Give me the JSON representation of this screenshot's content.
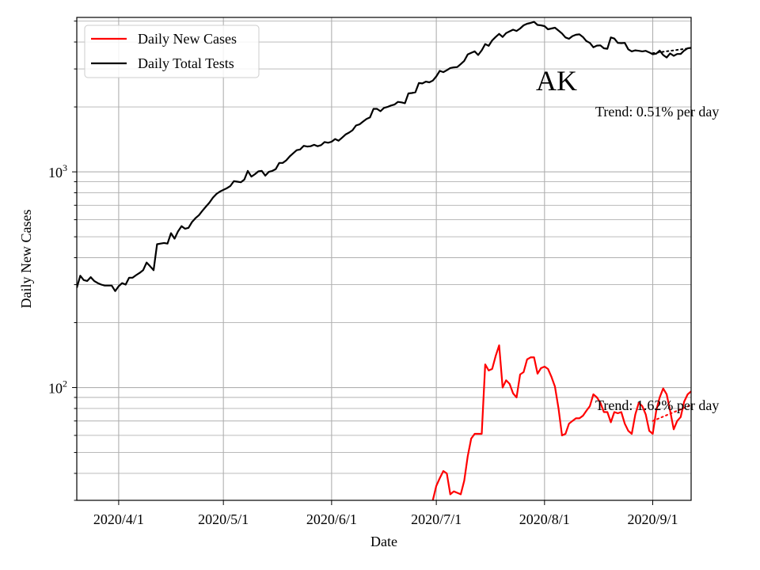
{
  "chart_data": {
    "type": "line",
    "title": "",
    "annotation": "AK",
    "xlabel": "Date",
    "ylabel": "Daily New Cases",
    "x_ticks": [
      "2020/4/1",
      "2020/5/1",
      "2020/6/1",
      "2020/7/1",
      "2020/8/1",
      "2020/9/1"
    ],
    "x_range": [
      "2020-03-20",
      "2020-09-12"
    ],
    "y_scale": "log",
    "ylim": [
      30,
      5200
    ],
    "y_major_ticks": [
      {
        "value": 100,
        "base": "10",
        "exp": "2"
      },
      {
        "value": 1000,
        "base": "10",
        "exp": "3"
      }
    ],
    "grid": true,
    "legend_position": "top-left",
    "series": [
      {
        "name": "Daily New Cases",
        "color": "#ff0000",
        "trend_text": "Trend: 1.62% per day",
        "trend_line": [
          [
            "2020-09-01",
            70
          ],
          [
            "2020-09-12",
            83
          ]
        ],
        "points": [
          [
            "2020-06-30",
            30
          ],
          [
            "2020-07-01",
            35
          ],
          [
            "2020-07-02",
            38
          ],
          [
            "2020-07-03",
            41
          ],
          [
            "2020-07-04",
            40
          ],
          [
            "2020-07-05",
            32
          ],
          [
            "2020-07-06",
            33
          ],
          [
            "2020-07-07",
            32.5
          ],
          [
            "2020-07-08",
            32
          ],
          [
            "2020-07-09",
            37
          ],
          [
            "2020-07-10",
            48
          ],
          [
            "2020-07-11",
            58
          ],
          [
            "2020-07-12",
            61
          ],
          [
            "2020-07-13",
            61
          ],
          [
            "2020-07-14",
            61
          ],
          [
            "2020-07-15",
            128
          ],
          [
            "2020-07-16",
            120
          ],
          [
            "2020-07-17",
            122
          ],
          [
            "2020-07-18",
            140
          ],
          [
            "2020-07-19",
            157
          ],
          [
            "2020-07-20",
            100
          ],
          [
            "2020-07-21",
            108
          ],
          [
            "2020-07-22",
            104
          ],
          [
            "2020-07-23",
            94
          ],
          [
            "2020-07-24",
            90
          ],
          [
            "2020-07-25",
            115
          ],
          [
            "2020-07-26",
            118
          ],
          [
            "2020-07-27",
            135
          ],
          [
            "2020-07-28",
            138
          ],
          [
            "2020-07-29",
            138
          ],
          [
            "2020-07-30",
            116
          ],
          [
            "2020-07-31",
            123
          ],
          [
            "2020-08-01",
            125
          ],
          [
            "2020-08-02",
            122
          ],
          [
            "2020-08-03",
            112
          ],
          [
            "2020-08-04",
            101
          ],
          [
            "2020-08-05",
            80
          ],
          [
            "2020-08-06",
            60
          ],
          [
            "2020-08-07",
            61
          ],
          [
            "2020-08-08",
            68
          ],
          [
            "2020-08-09",
            70
          ],
          [
            "2020-08-10",
            72
          ],
          [
            "2020-08-11",
            72
          ],
          [
            "2020-08-12",
            74
          ],
          [
            "2020-08-13",
            78
          ],
          [
            "2020-08-14",
            82
          ],
          [
            "2020-08-15",
            93
          ],
          [
            "2020-08-16",
            90
          ],
          [
            "2020-08-17",
            85
          ],
          [
            "2020-08-18",
            77
          ],
          [
            "2020-08-19",
            77
          ],
          [
            "2020-08-20",
            69
          ],
          [
            "2020-08-21",
            77
          ],
          [
            "2020-08-22",
            76
          ],
          [
            "2020-08-23",
            77
          ],
          [
            "2020-08-24",
            68
          ],
          [
            "2020-08-25",
            63
          ],
          [
            "2020-08-26",
            61
          ],
          [
            "2020-08-27",
            75
          ],
          [
            "2020-08-28",
            85
          ],
          [
            "2020-08-29",
            82
          ],
          [
            "2020-08-30",
            75
          ],
          [
            "2020-08-31",
            63
          ],
          [
            "2020-09-01",
            61
          ],
          [
            "2020-09-02",
            78
          ],
          [
            "2020-09-03",
            90
          ],
          [
            "2020-09-04",
            99
          ],
          [
            "2020-09-05",
            93
          ],
          [
            "2020-09-06",
            78
          ],
          [
            "2020-09-07",
            64
          ],
          [
            "2020-09-08",
            70
          ],
          [
            "2020-09-09",
            73
          ],
          [
            "2020-09-10",
            86
          ],
          [
            "2020-09-11",
            93
          ],
          [
            "2020-09-12",
            96
          ],
          [
            "2020-09-13",
            90
          ],
          [
            "2020-09-14",
            82
          ]
        ]
      },
      {
        "name": "Daily Total Tests",
        "color": "#000000",
        "trend_text": "Trend: 0.51% per day",
        "trend_line": [
          [
            "2020-09-01",
            3550
          ],
          [
            "2020-09-12",
            3750
          ]
        ],
        "points": [
          [
            "2020-03-20",
            290
          ],
          [
            "2020-03-21",
            330
          ],
          [
            "2020-03-22",
            315
          ],
          [
            "2020-03-23",
            312
          ],
          [
            "2020-03-24",
            325
          ],
          [
            "2020-03-25",
            312
          ],
          [
            "2020-03-26",
            305
          ],
          [
            "2020-03-27",
            300
          ],
          [
            "2020-03-28",
            297
          ],
          [
            "2020-03-29",
            297
          ],
          [
            "2020-03-30",
            297
          ],
          [
            "2020-03-31",
            280
          ],
          [
            "2020-04-01",
            295
          ],
          [
            "2020-04-02",
            305
          ],
          [
            "2020-04-03",
            300
          ],
          [
            "2020-04-04",
            323
          ],
          [
            "2020-04-05",
            323
          ],
          [
            "2020-04-06",
            332
          ],
          [
            "2020-04-07",
            340
          ],
          [
            "2020-04-08",
            350
          ],
          [
            "2020-04-09",
            380
          ],
          [
            "2020-04-10",
            365
          ],
          [
            "2020-04-11",
            350
          ],
          [
            "2020-04-12",
            462
          ],
          [
            "2020-04-13",
            465
          ],
          [
            "2020-04-14",
            468
          ],
          [
            "2020-04-15",
            465
          ],
          [
            "2020-04-16",
            520
          ],
          [
            "2020-04-17",
            490
          ],
          [
            "2020-04-18",
            530
          ],
          [
            "2020-04-19",
            560
          ],
          [
            "2020-04-20",
            545
          ],
          [
            "2020-04-21",
            550
          ],
          [
            "2020-04-22",
            585
          ],
          [
            "2020-04-23",
            610
          ],
          [
            "2020-04-24",
            630
          ],
          [
            "2020-04-25",
            660
          ],
          [
            "2020-04-26",
            690
          ],
          [
            "2020-04-27",
            720
          ],
          [
            "2020-04-28",
            760
          ],
          [
            "2020-04-29",
            790
          ],
          [
            "2020-04-30",
            810
          ],
          [
            "2020-05-01",
            825
          ],
          [
            "2020-05-02",
            840
          ],
          [
            "2020-05-03",
            860
          ],
          [
            "2020-05-04",
            905
          ],
          [
            "2020-05-05",
            900
          ],
          [
            "2020-05-06",
            895
          ],
          [
            "2020-05-07",
            920
          ],
          [
            "2020-05-08",
            1010
          ],
          [
            "2020-05-09",
            950
          ],
          [
            "2020-05-10",
            975
          ],
          [
            "2020-05-11",
            1005
          ],
          [
            "2020-05-12",
            1010
          ],
          [
            "2020-05-13",
            960
          ],
          [
            "2020-05-14",
            1000
          ],
          [
            "2020-05-15",
            1010
          ],
          [
            "2020-05-16",
            1030
          ],
          [
            "2020-05-17",
            1100
          ],
          [
            "2020-05-18",
            1100
          ],
          [
            "2020-05-19",
            1130
          ],
          [
            "2020-05-20",
            1180
          ],
          [
            "2020-05-21",
            1220
          ],
          [
            "2020-05-22",
            1260
          ],
          [
            "2020-05-23",
            1270
          ],
          [
            "2020-05-24",
            1320
          ],
          [
            "2020-05-25",
            1310
          ],
          [
            "2020-05-26",
            1315
          ],
          [
            "2020-05-27",
            1335
          ],
          [
            "2020-05-28",
            1315
          ],
          [
            "2020-05-29",
            1330
          ],
          [
            "2020-05-30",
            1375
          ],
          [
            "2020-05-31",
            1365
          ],
          [
            "2020-06-01",
            1380
          ],
          [
            "2020-06-02",
            1420
          ],
          [
            "2020-06-03",
            1395
          ],
          [
            "2020-06-04",
            1440
          ],
          [
            "2020-06-05",
            1490
          ],
          [
            "2020-06-06",
            1520
          ],
          [
            "2020-06-07",
            1560
          ],
          [
            "2020-06-08",
            1640
          ],
          [
            "2020-06-09",
            1660
          ],
          [
            "2020-06-10",
            1710
          ],
          [
            "2020-06-11",
            1760
          ],
          [
            "2020-06-12",
            1790
          ],
          [
            "2020-06-13",
            1960
          ],
          [
            "2020-06-14",
            1960
          ],
          [
            "2020-06-15",
            1910
          ],
          [
            "2020-06-16",
            1980
          ],
          [
            "2020-06-17",
            2000
          ],
          [
            "2020-06-18",
            2030
          ],
          [
            "2020-06-19",
            2050
          ],
          [
            "2020-06-20",
            2110
          ],
          [
            "2020-06-21",
            2100
          ],
          [
            "2020-06-22",
            2080
          ],
          [
            "2020-06-23",
            2310
          ],
          [
            "2020-06-24",
            2320
          ],
          [
            "2020-06-25",
            2340
          ],
          [
            "2020-06-26",
            2580
          ],
          [
            "2020-06-27",
            2570
          ],
          [
            "2020-06-28",
            2620
          ],
          [
            "2020-06-29",
            2600
          ],
          [
            "2020-06-30",
            2650
          ],
          [
            "2020-07-01",
            2770
          ],
          [
            "2020-07-02",
            2940
          ],
          [
            "2020-07-03",
            2900
          ],
          [
            "2020-07-04",
            2960
          ],
          [
            "2020-07-05",
            3030
          ],
          [
            "2020-07-06",
            3050
          ],
          [
            "2020-07-07",
            3060
          ],
          [
            "2020-07-08",
            3160
          ],
          [
            "2020-07-09",
            3270
          ],
          [
            "2020-07-10",
            3500
          ],
          [
            "2020-07-11",
            3560
          ],
          [
            "2020-07-12",
            3620
          ],
          [
            "2020-07-13",
            3480
          ],
          [
            "2020-07-14",
            3660
          ],
          [
            "2020-07-15",
            3910
          ],
          [
            "2020-07-16",
            3840
          ],
          [
            "2020-07-17",
            4070
          ],
          [
            "2020-07-18",
            4220
          ],
          [
            "2020-07-19",
            4360
          ],
          [
            "2020-07-20",
            4220
          ],
          [
            "2020-07-21",
            4400
          ],
          [
            "2020-07-22",
            4480
          ],
          [
            "2020-07-23",
            4560
          ],
          [
            "2020-07-24",
            4500
          ],
          [
            "2020-07-25",
            4620
          ],
          [
            "2020-07-26",
            4780
          ],
          [
            "2020-07-27",
            4860
          ],
          [
            "2020-07-28",
            4900
          ],
          [
            "2020-07-29",
            4960
          ],
          [
            "2020-07-30",
            4800
          ],
          [
            "2020-07-31",
            4780
          ],
          [
            "2020-08-01",
            4740
          ],
          [
            "2020-08-02",
            4580
          ],
          [
            "2020-08-03",
            4620
          ],
          [
            "2020-08-04",
            4660
          ],
          [
            "2020-08-05",
            4520
          ],
          [
            "2020-08-06",
            4380
          ],
          [
            "2020-08-07",
            4200
          ],
          [
            "2020-08-08",
            4140
          ],
          [
            "2020-08-09",
            4260
          ],
          [
            "2020-08-10",
            4320
          ],
          [
            "2020-08-11",
            4340
          ],
          [
            "2020-08-12",
            4220
          ],
          [
            "2020-08-13",
            4040
          ],
          [
            "2020-08-14",
            3960
          ],
          [
            "2020-08-15",
            3780
          ],
          [
            "2020-08-16",
            3850
          ],
          [
            "2020-08-17",
            3860
          ],
          [
            "2020-08-18",
            3740
          ],
          [
            "2020-08-19",
            3720
          ],
          [
            "2020-08-20",
            4200
          ],
          [
            "2020-08-21",
            4150
          ],
          [
            "2020-08-22",
            3960
          ],
          [
            "2020-08-23",
            3950
          ],
          [
            "2020-08-24",
            3960
          ],
          [
            "2020-08-25",
            3700
          ],
          [
            "2020-08-26",
            3620
          ],
          [
            "2020-08-27",
            3660
          ],
          [
            "2020-08-28",
            3640
          ],
          [
            "2020-08-29",
            3620
          ],
          [
            "2020-08-30",
            3640
          ],
          [
            "2020-08-31",
            3580
          ],
          [
            "2020-09-01",
            3510
          ],
          [
            "2020-09-02",
            3530
          ],
          [
            "2020-09-03",
            3650
          ],
          [
            "2020-09-04",
            3480
          ],
          [
            "2020-09-05",
            3390
          ],
          [
            "2020-09-06",
            3540
          ],
          [
            "2020-09-07",
            3450
          ],
          [
            "2020-09-08",
            3520
          ],
          [
            "2020-09-09",
            3520
          ],
          [
            "2020-09-10",
            3650
          ],
          [
            "2020-09-11",
            3740
          ],
          [
            "2020-09-12",
            3760
          ],
          [
            "2020-09-13",
            3620
          ],
          [
            "2020-09-14",
            3940
          ]
        ]
      }
    ]
  }
}
